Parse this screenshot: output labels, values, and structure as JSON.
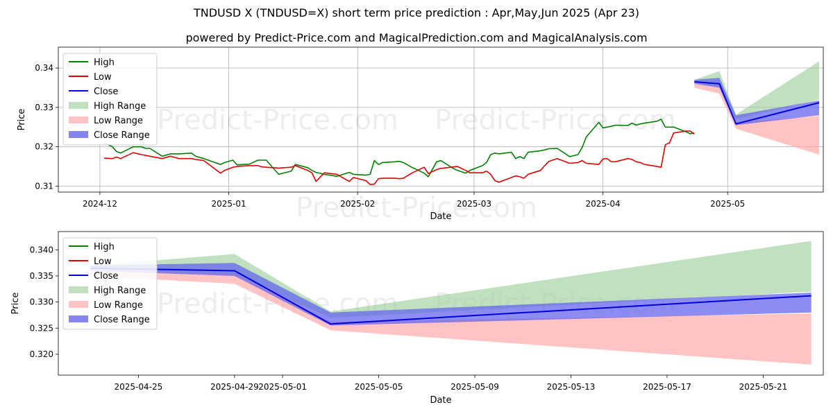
{
  "title": "TNDUSD X (TNDUSD=X) short term price prediction : Apr,May,Jun 2025 (Apr 23)",
  "subtitle": "powered by Predict-Price.com and MagicalPrediction.com and MagicalAnalysis.com",
  "watermark": "Predict-Price.com",
  "colors": {
    "high": "#008000",
    "low": "#e00000",
    "close": "#0000dd",
    "high_range": "#9ed09e",
    "low_range": "#ffaaaa",
    "close_range": "#6666ee"
  },
  "chart_data": [
    {
      "type": "line",
      "xlabel": "Date",
      "ylabel": "Price",
      "xlim": [
        "2024-11-21",
        "2025-05-24"
      ],
      "ylim": [
        0.3085,
        0.3453
      ],
      "y_ticks": [
        0.31,
        0.32,
        0.33,
        0.34
      ],
      "x_ticks": [
        "2024-12",
        "2025-01",
        "2025-02",
        "2025-03",
        "2025-04",
        "2025-05"
      ],
      "legend": {
        "position": "top-left",
        "entries": [
          "High",
          "Low",
          "Close",
          "High Range",
          "Low Range",
          "Close Range"
        ]
      },
      "grid": true,
      "series": [
        {
          "name": "High",
          "x": [
            "2024-12-02",
            "2024-12-04",
            "2024-12-05",
            "2024-12-06",
            "2024-12-09",
            "2024-12-11",
            "2024-12-12",
            "2024-12-13",
            "2024-12-16",
            "2024-12-18",
            "2024-12-20",
            "2024-12-23",
            "2024-12-24",
            "2024-12-26",
            "2024-12-30",
            "2024-12-31",
            "2025-01-02",
            "2025-01-03",
            "2025-01-06",
            "2025-01-08",
            "2025-01-09",
            "2025-01-10",
            "2025-01-13",
            "2025-01-16",
            "2025-01-17",
            "2025-01-20",
            "2025-01-21",
            "2025-01-22",
            "2025-01-24",
            "2025-01-27",
            "2025-01-30",
            "2025-01-31",
            "2025-02-03",
            "2025-02-04",
            "2025-02-05",
            "2025-02-06",
            "2025-02-07",
            "2025-02-10",
            "2025-02-11",
            "2025-02-12",
            "2025-02-14",
            "2025-02-17",
            "2025-02-18",
            "2025-02-20",
            "2025-02-21",
            "2025-02-24",
            "2025-02-25",
            "2025-02-27",
            "2025-02-28",
            "2025-03-03",
            "2025-03-04",
            "2025-03-05",
            "2025-03-06",
            "2025-03-07",
            "2025-03-10",
            "2025-03-11",
            "2025-03-12",
            "2025-03-13",
            "2025-03-14",
            "2025-03-17",
            "2025-03-18",
            "2025-03-19",
            "2025-03-21",
            "2025-03-24",
            "2025-03-26",
            "2025-03-27",
            "2025-03-28",
            "2025-03-31",
            "2025-04-01",
            "2025-04-02",
            "2025-04-03",
            "2025-04-04",
            "2025-04-07",
            "2025-04-08",
            "2025-04-09",
            "2025-04-10",
            "2025-04-11",
            "2025-04-14",
            "2025-04-15",
            "2025-04-16",
            "2025-04-17",
            "2025-04-18",
            "2025-04-21",
            "2025-04-22",
            "2025-04-23"
          ],
          "values": [
            0.321,
            0.32,
            0.3188,
            0.3184,
            0.32,
            0.32,
            0.3196,
            0.3196,
            0.3176,
            0.3182,
            0.3182,
            0.3184,
            0.3176,
            0.317,
            0.3155,
            0.316,
            0.3166,
            0.3154,
            0.3156,
            0.3166,
            0.3166,
            0.3166,
            0.313,
            0.3138,
            0.3155,
            0.3147,
            0.314,
            0.3135,
            0.313,
            0.3125,
            0.3135,
            0.313,
            0.3128,
            0.313,
            0.3165,
            0.3155,
            0.316,
            0.3162,
            0.3163,
            0.316,
            0.3148,
            0.3133,
            0.3124,
            0.3162,
            0.3165,
            0.3145,
            0.314,
            0.3133,
            0.314,
            0.3152,
            0.316,
            0.318,
            0.3184,
            0.3182,
            0.3186,
            0.317,
            0.3175,
            0.317,
            0.3186,
            0.319,
            0.3192,
            0.3195,
            0.3196,
            0.3175,
            0.318,
            0.3198,
            0.3225,
            0.3262,
            0.3248,
            0.325,
            0.3252,
            0.3255,
            0.3254,
            0.326,
            0.3255,
            0.3258,
            0.326,
            0.3265,
            0.327,
            0.325,
            0.325,
            0.325,
            0.3238,
            0.3233,
            0.3235
          ]
        },
        {
          "name": "Low",
          "x": [
            "2024-12-02",
            "2024-12-04",
            "2024-12-05",
            "2024-12-06",
            "2024-12-09",
            "2024-12-11",
            "2024-12-12",
            "2024-12-13",
            "2024-12-16",
            "2024-12-18",
            "2024-12-20",
            "2024-12-23",
            "2024-12-24",
            "2024-12-26",
            "2024-12-30",
            "2024-12-31",
            "2025-01-02",
            "2025-01-03",
            "2025-01-06",
            "2025-01-08",
            "2025-01-09",
            "2025-01-10",
            "2025-01-13",
            "2025-01-16",
            "2025-01-17",
            "2025-01-20",
            "2025-01-21",
            "2025-01-22",
            "2025-01-24",
            "2025-01-27",
            "2025-01-30",
            "2025-01-31",
            "2025-02-03",
            "2025-02-04",
            "2025-02-05",
            "2025-02-06",
            "2025-02-07",
            "2025-02-10",
            "2025-02-11",
            "2025-02-12",
            "2025-02-14",
            "2025-02-17",
            "2025-02-18",
            "2025-02-20",
            "2025-02-21",
            "2025-02-24",
            "2025-02-25",
            "2025-02-27",
            "2025-02-28",
            "2025-03-03",
            "2025-03-04",
            "2025-03-05",
            "2025-03-06",
            "2025-03-07",
            "2025-03-10",
            "2025-03-11",
            "2025-03-12",
            "2025-03-13",
            "2025-03-14",
            "2025-03-17",
            "2025-03-18",
            "2025-03-19",
            "2025-03-21",
            "2025-03-24",
            "2025-03-26",
            "2025-03-27",
            "2025-03-28",
            "2025-03-31",
            "2025-04-01",
            "2025-04-02",
            "2025-04-03",
            "2025-04-04",
            "2025-04-07",
            "2025-04-08",
            "2025-04-09",
            "2025-04-10",
            "2025-04-11",
            "2025-04-14",
            "2025-04-15",
            "2025-04-16",
            "2025-04-17",
            "2025-04-18",
            "2025-04-21",
            "2025-04-22",
            "2025-04-23"
          ],
          "values": [
            0.3171,
            0.317,
            0.3174,
            0.317,
            0.3185,
            0.318,
            0.3178,
            0.3176,
            0.317,
            0.3176,
            0.317,
            0.317,
            0.3168,
            0.3165,
            0.3133,
            0.314,
            0.3148,
            0.315,
            0.3152,
            0.3152,
            0.3149,
            0.3148,
            0.3146,
            0.3148,
            0.3152,
            0.314,
            0.3134,
            0.3112,
            0.3134,
            0.313,
            0.3112,
            0.3122,
            0.3114,
            0.3104,
            0.3105,
            0.3119,
            0.312,
            0.312,
            0.3119,
            0.312,
            0.3133,
            0.3148,
            0.3132,
            0.3142,
            0.3145,
            0.3149,
            0.315,
            0.314,
            0.3134,
            0.3134,
            0.3138,
            0.313,
            0.3114,
            0.311,
            0.3122,
            0.3126,
            0.3124,
            0.312,
            0.313,
            0.314,
            0.3152,
            0.3163,
            0.317,
            0.3158,
            0.316,
            0.3165,
            0.3158,
            0.3155,
            0.3169,
            0.317,
            0.3162,
            0.3162,
            0.317,
            0.3168,
            0.3162,
            0.316,
            0.3155,
            0.315,
            0.3148,
            0.3205,
            0.321,
            0.3235,
            0.324,
            0.324,
            0.3232
          ]
        },
        {
          "name": "Close",
          "x": [
            "2025-04-23",
            "2025-04-29",
            "2025-05-03",
            "2025-05-23"
          ],
          "values": [
            0.3365,
            0.336,
            0.3258,
            0.3312
          ]
        }
      ]
    },
    {
      "type": "line",
      "xlabel": "Date",
      "ylabel": "Price",
      "xlim": [
        "2025-04-21T16:00",
        "2025-05-23T12:00"
      ],
      "ylim": [
        0.316,
        0.3435
      ],
      "y_ticks": [
        0.32,
        0.325,
        0.33,
        0.335,
        0.34
      ],
      "y_tick_labels": [
        "0.320",
        "0.325",
        "0.330",
        "0.335",
        "0.340"
      ],
      "x_ticks": [
        "2025-04-25",
        "2025-04-29",
        "2025-05-01",
        "2025-05-05",
        "2025-05-09",
        "2025-05-13",
        "2025-05-17",
        "2025-05-21"
      ],
      "legend": {
        "position": "top-left",
        "entries": [
          "High",
          "Low",
          "Close",
          "High Range",
          "Low Range",
          "Close Range"
        ]
      },
      "grid": false,
      "series": [
        {
          "name": "Close",
          "x": [
            "2025-04-23",
            "2025-04-29",
            "2025-05-03",
            "2025-05-23"
          ],
          "values": [
            0.3365,
            0.336,
            0.3258,
            0.3312
          ]
        },
        {
          "name": "High Range",
          "x": [
            "2025-04-23",
            "2025-04-29",
            "2025-05-03",
            "2025-05-23"
          ],
          "upper": [
            0.337,
            0.3392,
            0.3282,
            0.3417
          ],
          "lower": [
            0.3362,
            0.3352,
            0.327,
            0.332
          ]
        },
        {
          "name": "Low Range",
          "x": [
            "2025-04-23",
            "2025-04-29",
            "2025-05-03",
            "2025-05-23"
          ],
          "upper": [
            0.336,
            0.3355,
            0.3262,
            0.3278
          ],
          "lower": [
            0.335,
            0.3335,
            0.3246,
            0.318
          ]
        },
        {
          "name": "Close Range",
          "x": [
            "2025-04-23",
            "2025-04-29",
            "2025-05-03",
            "2025-05-23"
          ],
          "upper": [
            0.337,
            0.3375,
            0.328,
            0.3318
          ],
          "lower": [
            0.336,
            0.335,
            0.3255,
            0.328
          ]
        }
      ]
    }
  ]
}
